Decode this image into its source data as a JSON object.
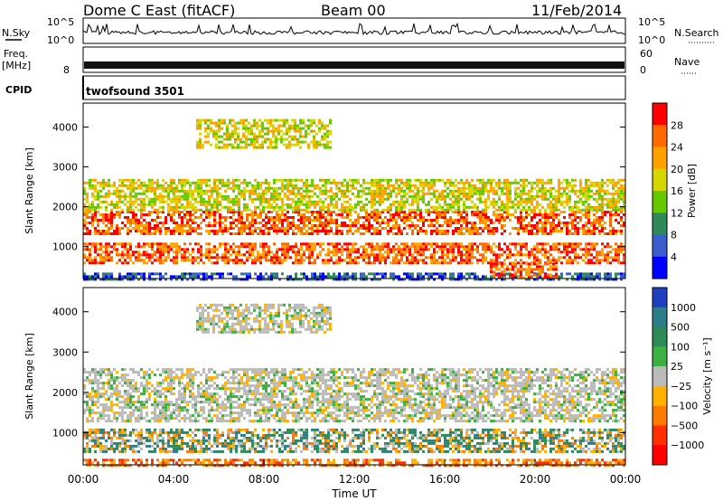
{
  "header": {
    "station": "Dome C East (fitACF)",
    "beam": "Beam 00",
    "date": "11/Feb/2014"
  },
  "noise_panel": {
    "left_label": "N.Sky",
    "right_label": "N.Search",
    "left_ticks": [
      "10^5",
      "10^0"
    ],
    "right_ticks": [
      "10^5",
      "10^0"
    ]
  },
  "freq_panel": {
    "left_label": "Freq.",
    "left_unit": "[MHz]",
    "right_label": "Nave",
    "left_ticks": [
      "8"
    ],
    "right_ticks": [
      "60",
      "0"
    ]
  },
  "cpid_panel": {
    "label": "CPID",
    "program": "twofsound 3501"
  },
  "chart_data": [
    {
      "type": "heatmap",
      "name": "power",
      "ylabel": "Slant Range [km]",
      "yticks": [
        "1000",
        "2000",
        "3000",
        "4000"
      ],
      "ylim": [
        200,
        4600
      ],
      "xlim_hours": [
        0,
        24
      ],
      "colorbar": {
        "label": "Power [dB]",
        "ticks": [
          "28",
          "24",
          "20",
          "16",
          "12",
          "8",
          "4"
        ],
        "colors": [
          "#ff0000",
          "#ff6a00",
          "#ffa200",
          "#d6d600",
          "#66c800",
          "#2e8b57",
          "#3a5fcd",
          "#0000ff"
        ]
      },
      "bands": [
        {
          "x0": 0,
          "x1": 24,
          "y0": 200,
          "y1": 350,
          "level": "low"
        },
        {
          "x0": 0,
          "x1": 24,
          "y0": 600,
          "y1": 1100,
          "level": "high"
        },
        {
          "x0": 0,
          "x1": 24,
          "y0": 1300,
          "y1": 1900,
          "level": "high"
        },
        {
          "x0": 0,
          "x1": 24,
          "y0": 1900,
          "y1": 2700,
          "level": "mid"
        },
        {
          "x0": 5,
          "x1": 11,
          "y0": 3500,
          "y1": 4200,
          "level": "mid"
        },
        {
          "x0": 18,
          "x1": 21,
          "y0": 200,
          "y1": 600,
          "level": "high"
        }
      ]
    },
    {
      "type": "heatmap",
      "name": "velocity",
      "ylabel": "Slant Range [km]",
      "yticks": [
        "1000",
        "2000",
        "3000",
        "4000"
      ],
      "ylim": [
        200,
        4600
      ],
      "xlim_hours": [
        0,
        24
      ],
      "colorbar": {
        "label": "Velocity [m s⁻¹]",
        "ticks": [
          "1000",
          "500",
          "100",
          "25",
          "−25",
          "−100",
          "−500",
          "−1000"
        ],
        "colors": [
          "#1f3fbf",
          "#2e7d8b",
          "#2e8b57",
          "#3cb043",
          "#bbbbbb",
          "#ffb000",
          "#ff7a00",
          "#ff3000",
          "#ff0000"
        ]
      },
      "bands": [
        {
          "x0": 0,
          "x1": 24,
          "y0": 200,
          "y1": 350,
          "level": "neg"
        },
        {
          "x0": 0,
          "x1": 24,
          "y0": 500,
          "y1": 1100,
          "level": "mixed"
        },
        {
          "x0": 0,
          "x1": 24,
          "y0": 1300,
          "y1": 2600,
          "level": "zero"
        },
        {
          "x0": 5,
          "x1": 11,
          "y0": 3500,
          "y1": 4200,
          "level": "zero"
        }
      ]
    }
  ],
  "x_axis": {
    "label": "Time UT",
    "ticks": [
      "00:00",
      "04:00",
      "08:00",
      "12:00",
      "16:00",
      "20:00",
      "00:00"
    ]
  }
}
